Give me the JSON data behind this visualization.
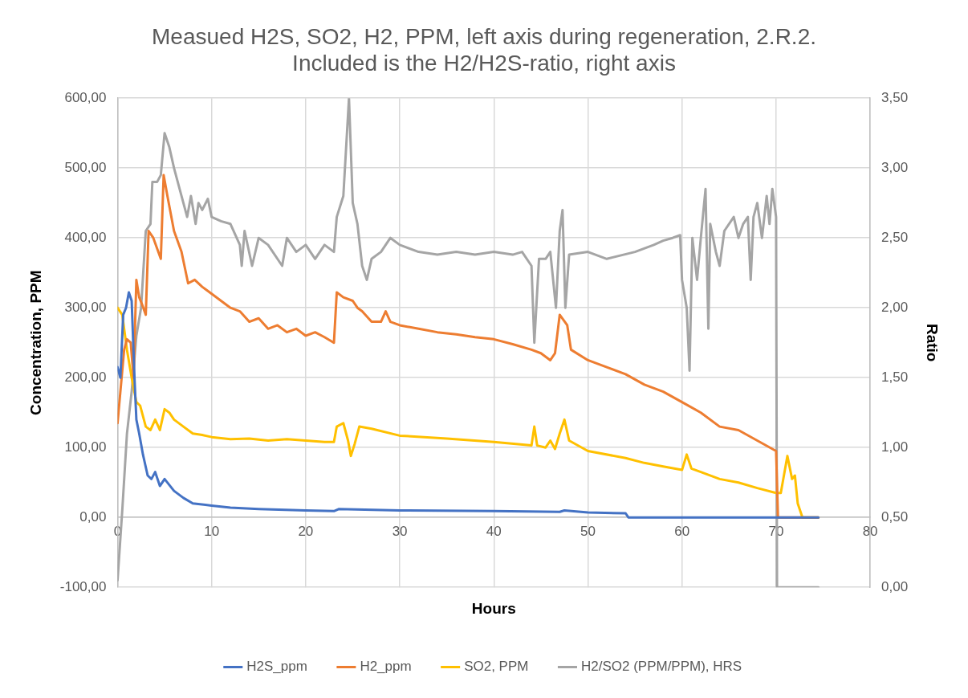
{
  "chart_data": {
    "type": "line",
    "title": "Measued H2S, SO2, H2, PPM, left axis during regeneration, 2.R.2. Included is the H2/H2S-ratio, right axis",
    "xlabel": "Hours",
    "ylabel": "Concentration, PPM",
    "y2label": "Ratio",
    "xlim": [
      0,
      80
    ],
    "xticks": [
      0,
      10,
      20,
      30,
      40,
      50,
      60,
      70,
      80
    ],
    "ylim": [
      -100,
      600
    ],
    "yticks": [
      {
        "value": -100,
        "label": "-100,00"
      },
      {
        "value": 0,
        "label": "0,00"
      },
      {
        "value": 100,
        "label": "100,00"
      },
      {
        "value": 200,
        "label": "200,00"
      },
      {
        "value": 300,
        "label": "300,00"
      },
      {
        "value": 400,
        "label": "400,00"
      },
      {
        "value": 500,
        "label": "500,00"
      },
      {
        "value": 600,
        "label": "600,00"
      }
    ],
    "y2lim": [
      0,
      3.5
    ],
    "y2ticks": [
      {
        "value": 0,
        "label": "0,00"
      },
      {
        "value": 0.5,
        "label": "0,50"
      },
      {
        "value": 1,
        "label": "1,00"
      },
      {
        "value": 1.5,
        "label": "1,50"
      },
      {
        "value": 2,
        "label": "2,00"
      },
      {
        "value": 2.5,
        "label": "2,50"
      },
      {
        "value": 3,
        "label": "3,00"
      },
      {
        "value": 3.5,
        "label": "3,50"
      }
    ],
    "grid": true,
    "legend": "bottom",
    "marker": "none",
    "series": [
      {
        "name": "H2S_ppm",
        "color": "#4472c4",
        "x": [
          0,
          0.3,
          0.6,
          0.9,
          1.2,
          1.5,
          1.8,
          2.0,
          2.3,
          2.7,
          3.2,
          3.6,
          4.0,
          4.5,
          5.0,
          6,
          7,
          8,
          10,
          12,
          15,
          20,
          23,
          23.5,
          30,
          40,
          47,
          47.5,
          50,
          54,
          54.3,
          70,
          74.5
        ],
        "values": [
          215,
          200,
          290,
          300,
          322,
          310,
          200,
          140,
          120,
          90,
          60,
          55,
          65,
          45,
          55,
          38,
          28,
          20,
          17,
          14,
          12,
          10,
          9,
          12,
          10,
          9,
          8,
          10,
          7,
          6,
          0,
          0,
          0
        ]
      },
      {
        "name": "H2_ppm",
        "color": "#ed7d31",
        "x": [
          0,
          0.3,
          0.7,
          1,
          1.4,
          1.7,
          2.0,
          2.3,
          2.6,
          3.0,
          3.3,
          3.8,
          4.2,
          4.6,
          4.9,
          5.3,
          6,
          6.8,
          7.5,
          8.2,
          9,
          10,
          11,
          12,
          13,
          14,
          15,
          16,
          17,
          18,
          19,
          20,
          21,
          22,
          23,
          23.3,
          24,
          25,
          25.5,
          26,
          27,
          28,
          28.5,
          29,
          30,
          32,
          34,
          36,
          38,
          40,
          42,
          44,
          45,
          46,
          46.5,
          47,
          47.8,
          48.2,
          50,
          52,
          54,
          56,
          58,
          60,
          62,
          64,
          66,
          68,
          70,
          70.2,
          74.5
        ],
        "values": [
          135,
          180,
          240,
          255,
          250,
          200,
          340,
          315,
          305,
          290,
          410,
          400,
          385,
          370,
          490,
          460,
          410,
          380,
          335,
          340,
          330,
          320,
          310,
          300,
          295,
          280,
          285,
          270,
          275,
          265,
          270,
          260,
          265,
          258,
          250,
          322,
          315,
          310,
          300,
          295,
          280,
          280,
          295,
          280,
          275,
          270,
          265,
          262,
          258,
          255,
          248,
          240,
          235,
          225,
          235,
          290,
          275,
          240,
          225,
          215,
          205,
          190,
          180,
          165,
          150,
          130,
          125,
          110,
          95,
          0,
          0
        ]
      },
      {
        "name": "SO2, PPM",
        "color": "#ffc000",
        "x": [
          0,
          0.5,
          1,
          1.5,
          2,
          2.4,
          3,
          3.5,
          4,
          4.5,
          5,
          5.5,
          6,
          7,
          8,
          9,
          10,
          12,
          14,
          16,
          18,
          20,
          22,
          23,
          23.3,
          24,
          24.5,
          24.8,
          25.2,
          25.7,
          27,
          30,
          35,
          40,
          44,
          44.3,
          44.6,
          45.5,
          46,
          46.5,
          47,
          47.5,
          48,
          50,
          54,
          56,
          58,
          60,
          60.5,
          61,
          62,
          64,
          66,
          68,
          70,
          70.5,
          71.2,
          71.7,
          72,
          72.3,
          72.8,
          74.5
        ],
        "values": [
          300,
          290,
          240,
          200,
          165,
          160,
          130,
          125,
          140,
          125,
          155,
          150,
          140,
          130,
          120,
          118,
          115,
          112,
          113,
          110,
          112,
          110,
          108,
          108,
          130,
          135,
          110,
          88,
          105,
          130,
          127,
          117,
          113,
          108,
          103,
          130,
          103,
          100,
          110,
          98,
          120,
          140,
          110,
          95,
          85,
          78,
          73,
          68,
          90,
          70,
          65,
          55,
          50,
          42,
          35,
          35,
          88,
          55,
          60,
          20,
          0,
          0
        ]
      },
      {
        "name": "H2/SO2 (PPM/PPM), HRS",
        "color": "#a5a5a5",
        "axis": "y2",
        "x": [
          0,
          0.5,
          1,
          1.5,
          2,
          2.5,
          3,
          3.5,
          3.7,
          4.2,
          4.6,
          5.0,
          5.5,
          6,
          6.6,
          7.4,
          7.8,
          8.3,
          8.6,
          9,
          9.6,
          10,
          11,
          12,
          13,
          13.2,
          13.5,
          14.3,
          15,
          16,
          17.5,
          18,
          19,
          20,
          21,
          22,
          23,
          23.3,
          24,
          24.6,
          25,
          25.5,
          26,
          26.5,
          27,
          28,
          29,
          30,
          32,
          34,
          36,
          38,
          40,
          42,
          43,
          44,
          44.3,
          44.8,
          45.5,
          46,
          46.6,
          47,
          47.3,
          47.6,
          48,
          50,
          52,
          55,
          57,
          58,
          59,
          59.8,
          60,
          60.5,
          60.8,
          61.1,
          61.6,
          62,
          62.5,
          62.8,
          63,
          63.6,
          64,
          64.5,
          65.5,
          66,
          66.5,
          67,
          67.3,
          67.6,
          68,
          68.5,
          69,
          69.3,
          69.6,
          70,
          70.1,
          74.5
        ],
        "values": [
          0.05,
          0.55,
          1.1,
          1.4,
          1.8,
          2.0,
          2.55,
          2.6,
          2.9,
          2.9,
          2.95,
          3.25,
          3.15,
          3.0,
          2.85,
          2.65,
          2.8,
          2.6,
          2.75,
          2.7,
          2.78,
          2.65,
          2.62,
          2.6,
          2.45,
          2.3,
          2.55,
          2.3,
          2.5,
          2.45,
          2.3,
          2.5,
          2.4,
          2.45,
          2.35,
          2.45,
          2.4,
          2.65,
          2.8,
          3.5,
          2.75,
          2.6,
          2.3,
          2.2,
          2.35,
          2.4,
          2.5,
          2.45,
          2.4,
          2.38,
          2.4,
          2.38,
          2.4,
          2.38,
          2.4,
          2.3,
          1.75,
          2.35,
          2.35,
          2.4,
          2.0,
          2.55,
          2.7,
          2.0,
          2.38,
          2.4,
          2.35,
          2.4,
          2.45,
          2.48,
          2.5,
          2.52,
          2.2,
          2.0,
          1.55,
          2.5,
          2.2,
          2.5,
          2.85,
          1.85,
          2.6,
          2.4,
          2.3,
          2.55,
          2.65,
          2.5,
          2.6,
          2.65,
          2.2,
          2.65,
          2.75,
          2.5,
          2.8,
          2.6,
          2.85,
          2.65,
          0,
          0
        ]
      }
    ]
  }
}
